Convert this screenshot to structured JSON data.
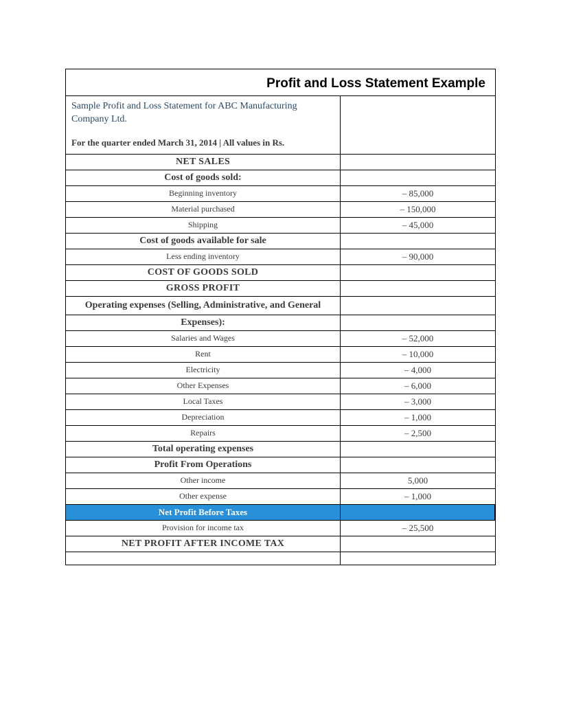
{
  "title": "Profit and Loss Statement Example",
  "subtitle": "Sample Profit and Loss Statement for ABC Manufacturing Company Ltd.",
  "period": "For the quarter ended March 31, 2014 | All values in Rs.",
  "highlight_color": "#2890d8",
  "rows": {
    "net_sales": "NET SALES",
    "cogs_heading": "Cost of goods sold:",
    "beginning_inventory": {
      "label": "Beginning inventory",
      "value": "– 85,000"
    },
    "material_purchased": {
      "label": "Material purchased",
      "value": "– 150,000"
    },
    "shipping": {
      "label": "Shipping",
      "value": "– 45,000"
    },
    "goods_available": "Cost of goods available for sale",
    "less_ending_inv": {
      "label": "Less ending inventory",
      "value": "– 90,000"
    },
    "cogs_total": "COST OF GOODS SOLD",
    "gross_profit": "GROSS PROFIT",
    "opex_heading1": "Operating expenses (Selling, Administrative, and General",
    "opex_heading2": "Expenses):",
    "salaries": {
      "label": "Salaries and Wages",
      "value": "– 52,000"
    },
    "rent": {
      "label": "Rent",
      "value": "– 10,000"
    },
    "electricity": {
      "label": "Electricity",
      "value": "– 4,000"
    },
    "other_exp": {
      "label": "Other Expenses",
      "value": "– 6,000"
    },
    "local_taxes": {
      "label": "Local Taxes",
      "value": "– 3,000"
    },
    "depreciation": {
      "label": "Depreciation",
      "value": "– 1,000"
    },
    "repairs": {
      "label": "Repairs",
      "value": "– 2,500"
    },
    "total_opex": "Total operating expenses",
    "profit_ops": "Profit From Operations",
    "other_income": {
      "label": "Other income",
      "value": "5,000"
    },
    "other_expense": {
      "label": "Other expense",
      "value": "– 1,000"
    },
    "net_before_tax": "Net Profit Before Taxes",
    "provision_tax": {
      "label": "Provision for income tax",
      "value": "– 25,500"
    },
    "net_after_tax": "NET PROFIT AFTER INCOME TAX"
  }
}
